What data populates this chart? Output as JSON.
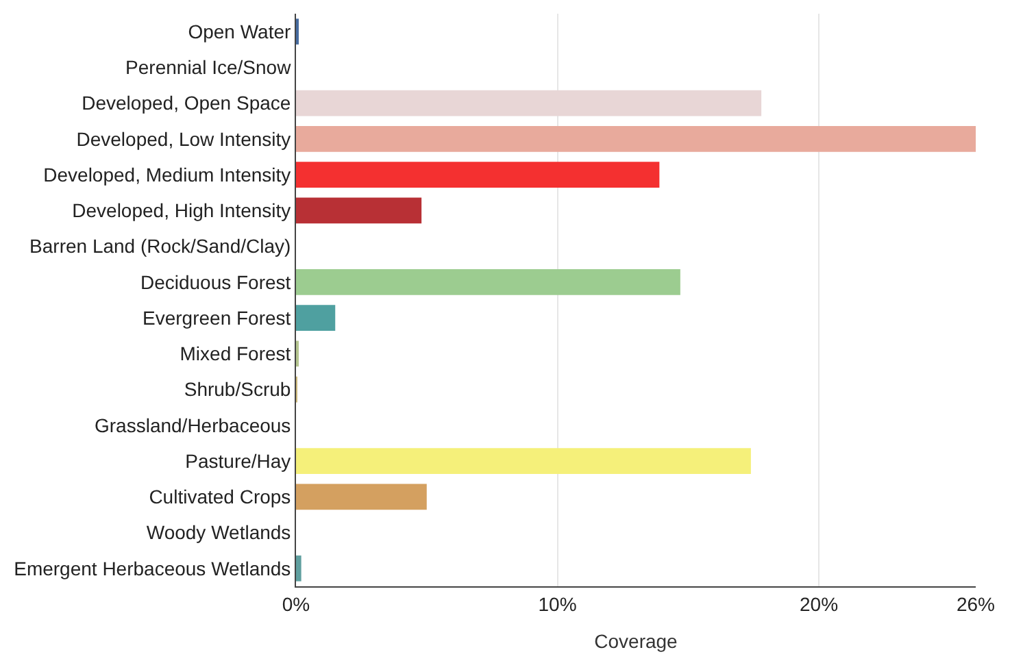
{
  "chart_data": {
    "type": "bar",
    "orientation": "horizontal",
    "xlabel": "Coverage",
    "categories": [
      "Open Water",
      "Perennial Ice/Snow",
      "Developed, Open Space",
      "Developed, Low Intensity",
      "Developed, Medium Intensity",
      "Developed, High Intensity",
      "Barren Land (Rock/Sand/Clay)",
      "Deciduous Forest",
      "Evergreen Forest",
      "Mixed Forest",
      "Shrub/Scrub",
      "Grassland/Herbaceous",
      "Pasture/Hay",
      "Cultivated Crops",
      "Woody Wetlands",
      "Emergent Herbaceous Wetlands"
    ],
    "values": [
      0.1,
      0,
      17.8,
      26,
      13.9,
      4.8,
      0,
      14.7,
      1.5,
      0.1,
      0.05,
      0,
      17.4,
      5,
      0,
      0.2
    ],
    "colors": [
      "#466b9f",
      "#d1def8",
      "#e8d6d6",
      "#e8aa9c",
      "#f43030",
      "#b83035",
      "#b3ac9f",
      "#9ccc90",
      "#4fa0a0",
      "#b5c58f",
      "#ccb879",
      "#dfdfc2",
      "#f5f07a",
      "#d4a060",
      "#b8d9eb",
      "#5f9f9f"
    ],
    "xlim": [
      0,
      26
    ],
    "xticks": [
      {
        "value": 0,
        "label": "0%"
      },
      {
        "value": 10,
        "label": "10%"
      },
      {
        "value": 20,
        "label": "20%"
      },
      {
        "value": 26,
        "label": "26%"
      }
    ],
    "grid": "x"
  }
}
